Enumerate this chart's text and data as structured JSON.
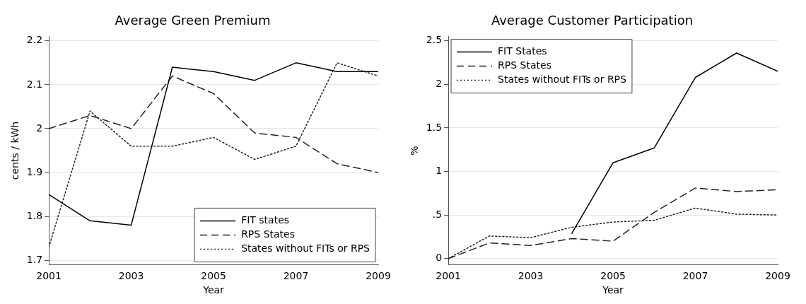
{
  "chart_data": [
    {
      "type": "line",
      "title": "Average Green Premium",
      "xlabel": "Year",
      "ylabel": "cents / kWh",
      "x": [
        2001,
        2002,
        2003,
        2004,
        2005,
        2006,
        2007,
        2008,
        2009
      ],
      "xlim": [
        2001,
        2009
      ],
      "xticks": [
        2001,
        2003,
        2005,
        2007,
        2009
      ],
      "ylim": [
        1.69,
        2.21
      ],
      "yticks": [
        1.7,
        1.8,
        1.9,
        2,
        2.1,
        2.2
      ],
      "grid": "y",
      "legend": "bottom right",
      "series": [
        {
          "name": "FIT states",
          "color": "#000000",
          "line_style": "solid",
          "values": [
            1.85,
            1.79,
            1.78,
            2.14,
            2.13,
            2.11,
            2.15,
            2.13,
            2.13
          ]
        },
        {
          "name": "RPS States",
          "color": "#222222",
          "line_style": "dashed",
          "values": [
            2.0,
            2.03,
            2.0,
            2.12,
            2.08,
            1.99,
            1.98,
            1.92,
            1.9
          ]
        },
        {
          "name": "States without FITs or RPS",
          "color": "#222222",
          "line_style": "dotted",
          "values": [
            1.73,
            2.04,
            1.96,
            1.96,
            1.98,
            1.93,
            1.96,
            2.15,
            2.12
          ]
        }
      ]
    },
    {
      "type": "line",
      "title": "Average Customer Participation",
      "xlabel": "Year",
      "ylabel": "%",
      "x": [
        2001,
        2002,
        2003,
        2004,
        2005,
        2006,
        2007,
        2008,
        2009
      ],
      "xlim": [
        2001,
        2009
      ],
      "xticks": [
        2001,
        2003,
        2005,
        2007,
        2009
      ],
      "ylim": [
        -0.07,
        2.55
      ],
      "yticks": [
        0,
        {
          "value": 0.5,
          "label": ".5"
        },
        1,
        1.5,
        2,
        2.5
      ],
      "grid": "y",
      "legend": "top left",
      "series": [
        {
          "name": "FIT States",
          "color": "#000000",
          "line_style": "solid",
          "values": [
            null,
            null,
            null,
            0.29,
            1.1,
            1.27,
            2.08,
            2.36,
            2.15
          ]
        },
        {
          "name": "RPS States",
          "color": "#222222",
          "line_style": "dashed",
          "values": [
            0,
            0.18,
            0.15,
            0.23,
            0.2,
            0.53,
            0.81,
            0.77,
            0.79
          ]
        },
        {
          "name": "States without FITs or RPS",
          "color": "#222222",
          "line_style": "dotted",
          "values": [
            0,
            0.26,
            0.24,
            0.36,
            0.42,
            0.44,
            0.58,
            0.51,
            0.5
          ]
        }
      ]
    }
  ]
}
